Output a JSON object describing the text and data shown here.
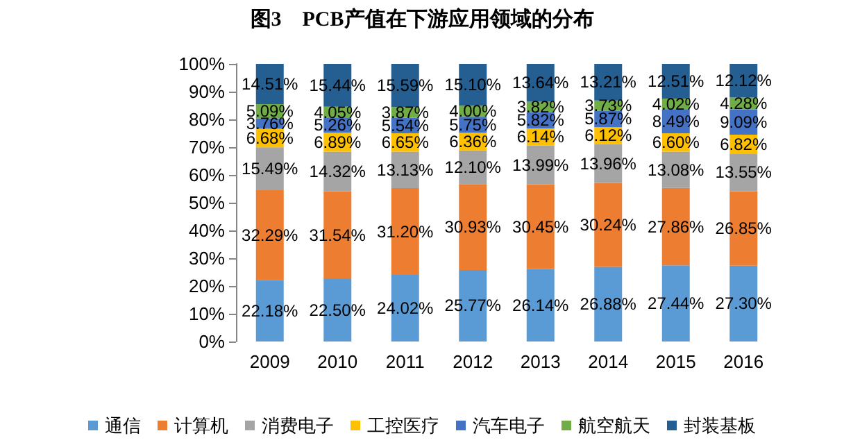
{
  "chart_data": {
    "type": "bar",
    "title": "图3　PCB产值在下游应用领域的分布",
    "stacked": true,
    "categories": [
      "2009",
      "2010",
      "2011",
      "2012",
      "2013",
      "2014",
      "2015",
      "2016"
    ],
    "series": [
      {
        "name": "通信",
        "color": "#5b9bd5",
        "values": [
          22.18,
          22.5,
          24.02,
          25.77,
          26.14,
          26.88,
          27.44,
          27.3
        ],
        "value_labels": [
          "22.18%",
          "22.50%",
          "24.02%",
          "25.77%",
          "26.14%",
          "26.88%",
          "27.44%",
          "27.30%"
        ]
      },
      {
        "name": "计算机",
        "color": "#ed7d31",
        "values": [
          32.29,
          31.54,
          31.2,
          30.93,
          30.45,
          30.24,
          27.86,
          26.85
        ],
        "value_labels": [
          "32.29%",
          "31.54%",
          "31.20%",
          "30.93%",
          "30.45%",
          "30.24%",
          "27.86%",
          "26.85%"
        ]
      },
      {
        "name": "消费电子",
        "color": "#a5a5a5",
        "values": [
          15.49,
          14.32,
          13.13,
          12.1,
          13.99,
          13.96,
          13.08,
          13.55
        ],
        "value_labels": [
          "15.49%",
          "14.32%",
          "13.13%",
          "12.10%",
          "13.99%",
          "13.96%",
          "13.08%",
          "13.55%"
        ]
      },
      {
        "name": "工控医疗",
        "color": "#ffc000",
        "values": [
          6.68,
          6.89,
          6.65,
          6.36,
          6.14,
          6.12,
          6.6,
          6.82
        ],
        "value_labels": [
          "6.68%",
          "6.89%",
          "6.65%",
          "6.36%",
          "6.14%",
          "6.12%",
          "6.60%",
          "6.82%"
        ]
      },
      {
        "name": "汽车电子",
        "color": "#4472c4",
        "values": [
          3.76,
          5.26,
          5.54,
          5.75,
          5.82,
          5.87,
          8.49,
          9.09
        ],
        "value_labels": [
          "3.76%",
          "5.26%",
          "5.54%",
          "5.75%",
          "5.82%",
          "5.87%",
          "8.49%",
          "9.09%"
        ]
      },
      {
        "name": "航空航天",
        "color": "#70ad47",
        "values": [
          5.09,
          4.05,
          3.87,
          4.0,
          3.82,
          3.73,
          4.02,
          4.28
        ],
        "value_labels": [
          "5.09%",
          "4.05%",
          "3.87%",
          "4.00%",
          "3.82%",
          "3.73%",
          "4.02%",
          "4.28%"
        ]
      },
      {
        "name": "封装基板",
        "color": "#255e91",
        "values": [
          14.51,
          15.44,
          15.59,
          15.1,
          13.64,
          13.21,
          12.51,
          12.12
        ],
        "value_labels": [
          "14.51%",
          "15.44%",
          "15.59%",
          "15.10%",
          "13.64%",
          "13.21%",
          "12.51%",
          "12.12%"
        ]
      }
    ],
    "ylim": [
      0,
      100
    ],
    "yticks": [
      {
        "value": 0,
        "label": "0%"
      },
      {
        "value": 10,
        "label": "10%"
      },
      {
        "value": 20,
        "label": "20%"
      },
      {
        "value": 30,
        "label": "30%"
      },
      {
        "value": 40,
        "label": "40%"
      },
      {
        "value": 50,
        "label": "50%"
      },
      {
        "value": 60,
        "label": "60%"
      },
      {
        "value": 70,
        "label": "70%"
      },
      {
        "value": 80,
        "label": "80%"
      },
      {
        "value": 90,
        "label": "90%"
      },
      {
        "value": 100,
        "label": "100%"
      }
    ],
    "grid": false,
    "legend": "bottom"
  }
}
